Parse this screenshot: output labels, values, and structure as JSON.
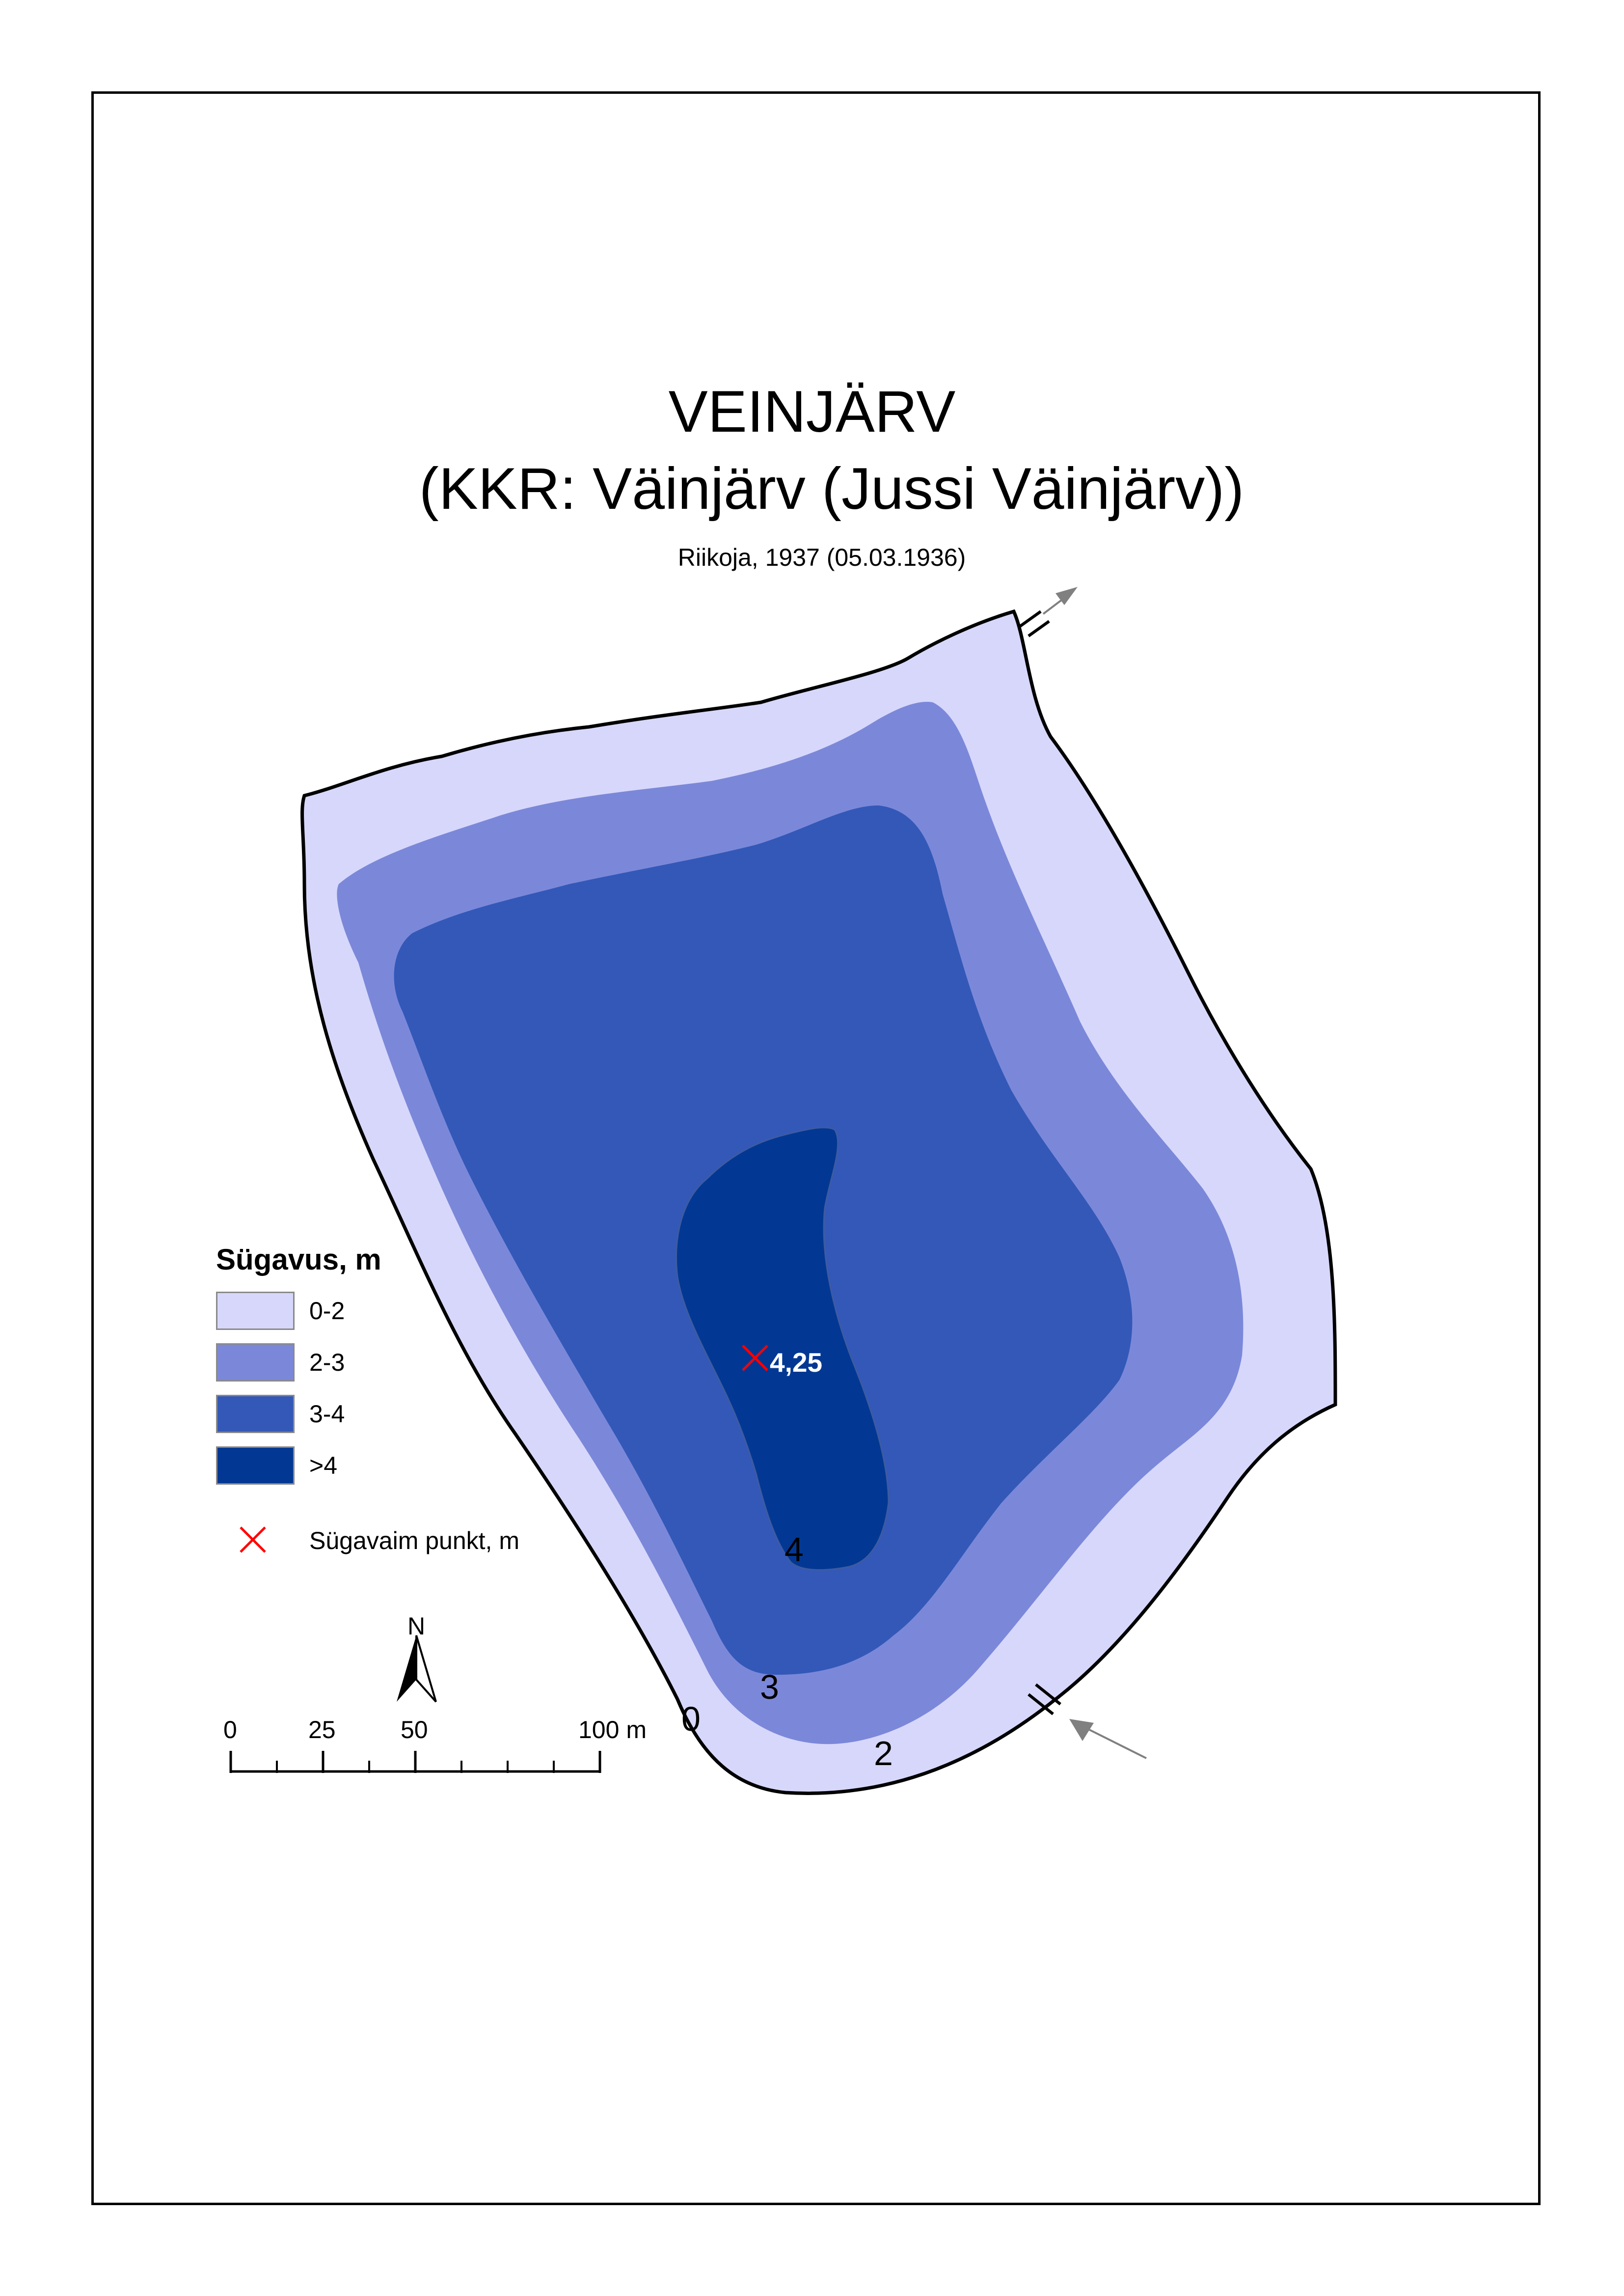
{
  "title": "VEINJÄRV",
  "subtitle": "(KKR: Väinjärv (Jussi Väinjärv))",
  "author_line": "Riikoja, 1937 (05.03.1936)",
  "legend": {
    "title": "Sügavus, m",
    "classes": [
      {
        "label": "0-2",
        "color": "#d7d7fb"
      },
      {
        "label": "2-3",
        "color": "#7b88d9"
      },
      {
        "label": "3-4",
        "color": "#3358b8"
      },
      {
        "label": ">4",
        "color": "#023893"
      }
    ],
    "deepest_point_label": "Sügavaim punkt, m"
  },
  "deepest_point": {
    "value": "4,25"
  },
  "contour_labels": [
    "0",
    "2",
    "3",
    "4"
  ],
  "north_arrow": {
    "label": "N"
  },
  "scale_bar": {
    "ticks": [
      "0",
      "25",
      "50",
      "100 m"
    ]
  },
  "colors": {
    "shore": "#000000",
    "marker": "#ff0000",
    "flow_arrow": "#808080"
  }
}
